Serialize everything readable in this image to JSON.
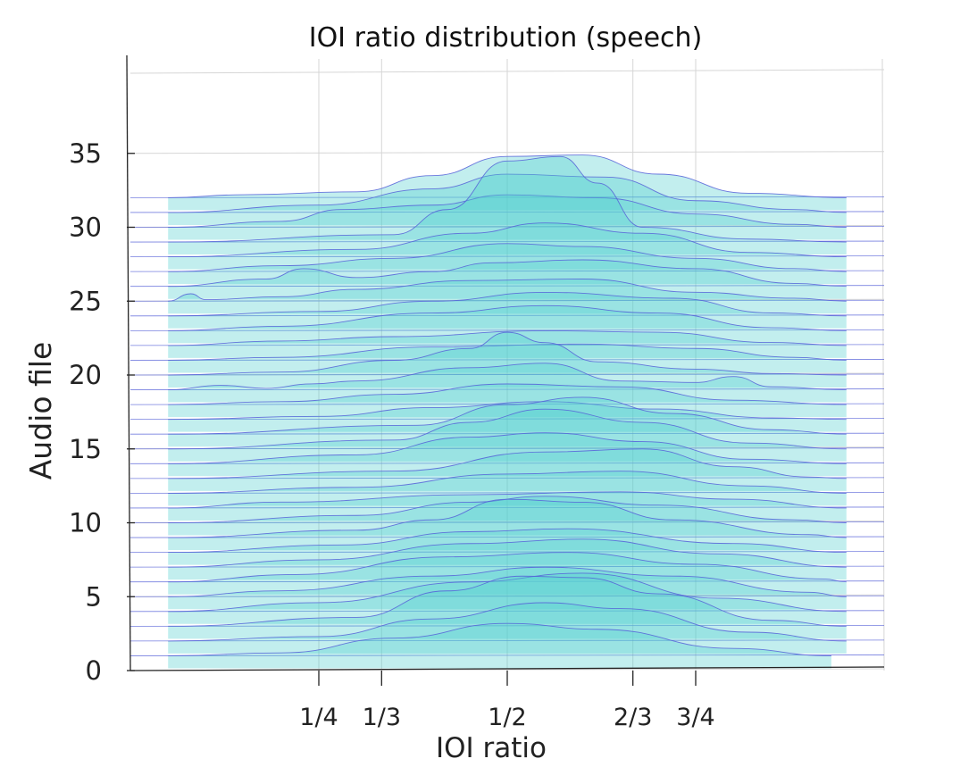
{
  "chart_data": {
    "type": "area",
    "title": "IOI ratio distribution (speech)",
    "xlabel": "IOI ratio",
    "ylabel": "Audio file",
    "x_ticks": [
      {
        "value": 0.25,
        "label": "1/4"
      },
      {
        "value": 0.3333,
        "label": "1/3"
      },
      {
        "value": 0.5,
        "label": "1/2"
      },
      {
        "value": 0.6667,
        "label": "2/3"
      },
      {
        "value": 0.75,
        "label": "3/4"
      }
    ],
    "y_ticks": [
      0,
      5,
      10,
      15,
      20,
      25,
      30,
      35
    ],
    "xlim": [
      0,
      1
    ],
    "ylim": [
      0,
      35
    ],
    "grid": true,
    "fill_color": "#4fcfcf",
    "line_color": "#5560d8",
    "series": [
      {
        "file": 1,
        "values": [
          {
            "x": 0.05,
            "y": 0
          },
          {
            "x": 0.2,
            "y": 0.2
          },
          {
            "x": 0.35,
            "y": 1.2
          },
          {
            "x": 0.5,
            "y": 2.2
          },
          {
            "x": 0.62,
            "y": 1.8
          },
          {
            "x": 0.8,
            "y": 0.5
          },
          {
            "x": 0.93,
            "y": 0
          }
        ]
      },
      {
        "file": 2,
        "values": [
          {
            "x": 0.05,
            "y": 0
          },
          {
            "x": 0.25,
            "y": 0.3
          },
          {
            "x": 0.4,
            "y": 1.5
          },
          {
            "x": 0.55,
            "y": 2.6
          },
          {
            "x": 0.65,
            "y": 2.2
          },
          {
            "x": 0.82,
            "y": 0.6
          },
          {
            "x": 0.95,
            "y": 0
          }
        ]
      },
      {
        "file": 3,
        "values": [
          {
            "x": 0.05,
            "y": 0
          },
          {
            "x": 0.3,
            "y": 0.6
          },
          {
            "x": 0.42,
            "y": 2.4
          },
          {
            "x": 0.52,
            "y": 3.4
          },
          {
            "x": 0.6,
            "y": 3.3
          },
          {
            "x": 0.7,
            "y": 2.2
          },
          {
            "x": 0.85,
            "y": 0.4
          },
          {
            "x": 0.95,
            "y": 0
          }
        ]
      },
      {
        "file": 4,
        "values": [
          {
            "x": 0.05,
            "y": 0
          },
          {
            "x": 0.25,
            "y": 0.6
          },
          {
            "x": 0.45,
            "y": 2.0
          },
          {
            "x": 0.6,
            "y": 2.6
          },
          {
            "x": 0.78,
            "y": 0.9
          },
          {
            "x": 0.95,
            "y": 0
          }
        ]
      },
      {
        "file": 5,
        "values": [
          {
            "x": 0.05,
            "y": 0
          },
          {
            "x": 0.2,
            "y": 0.4
          },
          {
            "x": 0.4,
            "y": 1.4
          },
          {
            "x": 0.55,
            "y": 2.0
          },
          {
            "x": 0.72,
            "y": 1.4
          },
          {
            "x": 0.9,
            "y": 0.3
          },
          {
            "x": 0.95,
            "y": 0
          }
        ]
      },
      {
        "file": 6,
        "values": [
          {
            "x": 0.05,
            "y": 0
          },
          {
            "x": 0.22,
            "y": 0.5
          },
          {
            "x": 0.42,
            "y": 1.7
          },
          {
            "x": 0.58,
            "y": 2.0
          },
          {
            "x": 0.75,
            "y": 1.2
          },
          {
            "x": 0.92,
            "y": 0.2
          },
          {
            "x": 0.95,
            "y": 0
          }
        ]
      },
      {
        "file": 7,
        "values": [
          {
            "x": 0.05,
            "y": 0
          },
          {
            "x": 0.25,
            "y": 0.5
          },
          {
            "x": 0.45,
            "y": 1.6
          },
          {
            "x": 0.6,
            "y": 1.9
          },
          {
            "x": 0.78,
            "y": 0.9
          },
          {
            "x": 0.95,
            "y": 0
          }
        ]
      },
      {
        "file": 8,
        "values": [
          {
            "x": 0.05,
            "y": 0
          },
          {
            "x": 0.28,
            "y": 0.5
          },
          {
            "x": 0.45,
            "y": 1.4
          },
          {
            "x": 0.58,
            "y": 1.6
          },
          {
            "x": 0.8,
            "y": 0.6
          },
          {
            "x": 0.95,
            "y": 0
          }
        ]
      },
      {
        "file": 9,
        "values": [
          {
            "x": 0.05,
            "y": 0
          },
          {
            "x": 0.3,
            "y": 0.5
          },
          {
            "x": 0.4,
            "y": 1.2
          },
          {
            "x": 0.5,
            "y": 2.6
          },
          {
            "x": 0.6,
            "y": 2.4
          },
          {
            "x": 0.72,
            "y": 1.2
          },
          {
            "x": 0.9,
            "y": 0.2
          },
          {
            "x": 0.95,
            "y": 0
          }
        ]
      },
      {
        "file": 10,
        "values": [
          {
            "x": 0.05,
            "y": 0
          },
          {
            "x": 0.3,
            "y": 0.5
          },
          {
            "x": 0.45,
            "y": 1.4
          },
          {
            "x": 0.55,
            "y": 1.8
          },
          {
            "x": 0.7,
            "y": 1.2
          },
          {
            "x": 0.88,
            "y": 0.2
          },
          {
            "x": 0.95,
            "y": 0
          }
        ]
      },
      {
        "file": 11,
        "values": [
          {
            "x": 0.05,
            "y": 0
          },
          {
            "x": 0.2,
            "y": 0.4
          },
          {
            "x": 0.45,
            "y": 0.9
          },
          {
            "x": 0.65,
            "y": 1.1
          },
          {
            "x": 0.8,
            "y": 0.6
          },
          {
            "x": 0.95,
            "y": 0
          }
        ]
      },
      {
        "file": 12,
        "values": [
          {
            "x": 0.05,
            "y": 0
          },
          {
            "x": 0.3,
            "y": 0.4
          },
          {
            "x": 0.5,
            "y": 1.3
          },
          {
            "x": 0.65,
            "y": 1.5
          },
          {
            "x": 0.82,
            "y": 0.5
          },
          {
            "x": 0.95,
            "y": 0
          }
        ]
      },
      {
        "file": 13,
        "values": [
          {
            "x": 0.05,
            "y": 0
          },
          {
            "x": 0.35,
            "y": 0.5
          },
          {
            "x": 0.55,
            "y": 1.8
          },
          {
            "x": 0.68,
            "y": 2.0
          },
          {
            "x": 0.8,
            "y": 0.8
          },
          {
            "x": 0.9,
            "y": 0.1
          },
          {
            "x": 0.95,
            "y": 0
          }
        ]
      },
      {
        "file": 14,
        "values": [
          {
            "x": 0.05,
            "y": 0
          },
          {
            "x": 0.3,
            "y": 0.6
          },
          {
            "x": 0.45,
            "y": 1.8
          },
          {
            "x": 0.55,
            "y": 2.1
          },
          {
            "x": 0.68,
            "y": 1.5
          },
          {
            "x": 0.82,
            "y": 0.3
          },
          {
            "x": 0.95,
            "y": 0
          }
        ]
      },
      {
        "file": 15,
        "values": [
          {
            "x": 0.05,
            "y": 0
          },
          {
            "x": 0.35,
            "y": 0.6
          },
          {
            "x": 0.45,
            "y": 1.8
          },
          {
            "x": 0.55,
            "y": 2.7
          },
          {
            "x": 0.68,
            "y": 1.8
          },
          {
            "x": 0.82,
            "y": 0.4
          },
          {
            "x": 0.95,
            "y": 0
          }
        ]
      },
      {
        "file": 16,
        "values": [
          {
            "x": 0.05,
            "y": 0
          },
          {
            "x": 0.38,
            "y": 0.6
          },
          {
            "x": 0.5,
            "y": 2.0
          },
          {
            "x": 0.6,
            "y": 2.5
          },
          {
            "x": 0.72,
            "y": 1.4
          },
          {
            "x": 0.85,
            "y": 0.3
          },
          {
            "x": 0.95,
            "y": 0
          }
        ]
      },
      {
        "file": 17,
        "values": [
          {
            "x": 0.05,
            "y": 0
          },
          {
            "x": 0.25,
            "y": 0.2
          },
          {
            "x": 0.4,
            "y": 0.8
          },
          {
            "x": 0.55,
            "y": 1.2
          },
          {
            "x": 0.7,
            "y": 0.7
          },
          {
            "x": 0.85,
            "y": 0.1
          },
          {
            "x": 0.95,
            "y": 0
          }
        ]
      },
      {
        "file": 18,
        "values": [
          {
            "x": 0.05,
            "y": 0
          },
          {
            "x": 0.2,
            "y": 0.2
          },
          {
            "x": 0.35,
            "y": 0.7
          },
          {
            "x": 0.5,
            "y": 1.4
          },
          {
            "x": 0.65,
            "y": 1.2
          },
          {
            "x": 0.8,
            "y": 0.3
          },
          {
            "x": 0.95,
            "y": 0
          }
        ]
      },
      {
        "file": 19,
        "values": [
          {
            "x": 0.05,
            "y": 0
          },
          {
            "x": 0.12,
            "y": 0.3
          },
          {
            "x": 0.18,
            "y": 0.1
          },
          {
            "x": 0.24,
            "y": 0.4
          },
          {
            "x": 0.3,
            "y": 0.6
          },
          {
            "x": 0.45,
            "y": 1.5
          },
          {
            "x": 0.55,
            "y": 1.8
          },
          {
            "x": 0.65,
            "y": 0.6
          },
          {
            "x": 0.75,
            "y": 0.5
          },
          {
            "x": 0.8,
            "y": 0.9
          },
          {
            "x": 0.85,
            "y": 0.2
          },
          {
            "x": 0.95,
            "y": 0
          }
        ]
      },
      {
        "file": 20,
        "values": [
          {
            "x": 0.05,
            "y": 0
          },
          {
            "x": 0.2,
            "y": 0.2
          },
          {
            "x": 0.35,
            "y": 1.0
          },
          {
            "x": 0.45,
            "y": 1.8
          },
          {
            "x": 0.5,
            "y": 2.9
          },
          {
            "x": 0.55,
            "y": 2.2
          },
          {
            "x": 0.62,
            "y": 0.9
          },
          {
            "x": 0.75,
            "y": 0.4
          },
          {
            "x": 0.85,
            "y": 0.1
          },
          {
            "x": 0.95,
            "y": 0
          }
        ]
      },
      {
        "file": 21,
        "values": [
          {
            "x": 0.05,
            "y": 0
          },
          {
            "x": 0.2,
            "y": 0.2
          },
          {
            "x": 0.4,
            "y": 0.9
          },
          {
            "x": 0.6,
            "y": 1.1
          },
          {
            "x": 0.75,
            "y": 0.8
          },
          {
            "x": 0.88,
            "y": 0.2
          },
          {
            "x": 0.95,
            "y": 0
          }
        ]
      },
      {
        "file": 22,
        "values": [
          {
            "x": 0.05,
            "y": 0
          },
          {
            "x": 0.2,
            "y": 0.3
          },
          {
            "x": 0.35,
            "y": 0.6
          },
          {
            "x": 0.55,
            "y": 1.0
          },
          {
            "x": 0.7,
            "y": 0.9
          },
          {
            "x": 0.85,
            "y": 0.2
          },
          {
            "x": 0.95,
            "y": 0
          }
        ]
      },
      {
        "file": 23,
        "values": [
          {
            "x": 0.05,
            "y": 0
          },
          {
            "x": 0.2,
            "y": 0.3
          },
          {
            "x": 0.4,
            "y": 1.2
          },
          {
            "x": 0.55,
            "y": 1.7
          },
          {
            "x": 0.7,
            "y": 1.2
          },
          {
            "x": 0.85,
            "y": 0.2
          },
          {
            "x": 0.95,
            "y": 0
          }
        ]
      },
      {
        "file": 24,
        "values": [
          {
            "x": 0.05,
            "y": 0
          },
          {
            "x": 0.25,
            "y": 0.3
          },
          {
            "x": 0.4,
            "y": 1.0
          },
          {
            "x": 0.55,
            "y": 1.6
          },
          {
            "x": 0.72,
            "y": 1.2
          },
          {
            "x": 0.85,
            "y": 0.2
          },
          {
            "x": 0.95,
            "y": 0
          }
        ]
      },
      {
        "file": 25,
        "values": [
          {
            "x": 0.05,
            "y": 0
          },
          {
            "x": 0.08,
            "y": 0.5
          },
          {
            "x": 0.1,
            "y": 0.1
          },
          {
            "x": 0.2,
            "y": 0.3
          },
          {
            "x": 0.3,
            "y": 0.8
          },
          {
            "x": 0.45,
            "y": 1.4
          },
          {
            "x": 0.6,
            "y": 1.5
          },
          {
            "x": 0.75,
            "y": 0.6
          },
          {
            "x": 0.88,
            "y": 0.2
          },
          {
            "x": 0.95,
            "y": 0
          }
        ]
      },
      {
        "file": 26,
        "values": [
          {
            "x": 0.05,
            "y": 0
          },
          {
            "x": 0.18,
            "y": 0.5
          },
          {
            "x": 0.23,
            "y": 1.2
          },
          {
            "x": 0.3,
            "y": 0.6
          },
          {
            "x": 0.4,
            "y": 1.0
          },
          {
            "x": 0.48,
            "y": 1.6
          },
          {
            "x": 0.6,
            "y": 1.8
          },
          {
            "x": 0.75,
            "y": 1.2
          },
          {
            "x": 0.88,
            "y": 0.2
          },
          {
            "x": 0.95,
            "y": 0
          }
        ]
      },
      {
        "file": 27,
        "values": [
          {
            "x": 0.05,
            "y": 0
          },
          {
            "x": 0.2,
            "y": 0.4
          },
          {
            "x": 0.35,
            "y": 0.9
          },
          {
            "x": 0.5,
            "y": 1.9
          },
          {
            "x": 0.6,
            "y": 1.7
          },
          {
            "x": 0.75,
            "y": 0.9
          },
          {
            "x": 0.88,
            "y": 0.2
          },
          {
            "x": 0.95,
            "y": 0
          }
        ]
      },
      {
        "file": 28,
        "values": [
          {
            "x": 0.05,
            "y": 0
          },
          {
            "x": 0.3,
            "y": 0.5
          },
          {
            "x": 0.45,
            "y": 1.6
          },
          {
            "x": 0.55,
            "y": 2.3
          },
          {
            "x": 0.68,
            "y": 1.6
          },
          {
            "x": 0.82,
            "y": 0.3
          },
          {
            "x": 0.95,
            "y": 0
          }
        ]
      },
      {
        "file": 29,
        "values": [
          {
            "x": 0.05,
            "y": 0
          },
          {
            "x": 0.35,
            "y": 0.5
          },
          {
            "x": 0.42,
            "y": 2.2
          },
          {
            "x": 0.5,
            "y": 5.5
          },
          {
            "x": 0.57,
            "y": 5.8
          },
          {
            "x": 0.62,
            "y": 4.0
          },
          {
            "x": 0.68,
            "y": 1.0
          },
          {
            "x": 0.82,
            "y": 0.2
          },
          {
            "x": 0.95,
            "y": 0
          }
        ]
      },
      {
        "file": 30,
        "values": [
          {
            "x": 0.05,
            "y": 0
          },
          {
            "x": 0.2,
            "y": 0.4
          },
          {
            "x": 0.28,
            "y": 1.2
          },
          {
            "x": 0.4,
            "y": 1.5
          },
          {
            "x": 0.5,
            "y": 2.2
          },
          {
            "x": 0.62,
            "y": 2.0
          },
          {
            "x": 0.75,
            "y": 0.9
          },
          {
            "x": 0.88,
            "y": 0.2
          },
          {
            "x": 0.95,
            "y": 0
          }
        ]
      },
      {
        "file": 31,
        "values": [
          {
            "x": 0.05,
            "y": 0
          },
          {
            "x": 0.25,
            "y": 0.5
          },
          {
            "x": 0.4,
            "y": 1.6
          },
          {
            "x": 0.5,
            "y": 2.6
          },
          {
            "x": 0.63,
            "y": 2.4
          },
          {
            "x": 0.75,
            "y": 0.8
          },
          {
            "x": 0.88,
            "y": 0.2
          },
          {
            "x": 0.95,
            "y": 0
          }
        ]
      },
      {
        "file": 32,
        "values": [
          {
            "x": 0.05,
            "y": 0
          },
          {
            "x": 0.15,
            "y": 0.2
          },
          {
            "x": 0.3,
            "y": 0.4
          },
          {
            "x": 0.4,
            "y": 1.5
          },
          {
            "x": 0.5,
            "y": 2.8
          },
          {
            "x": 0.6,
            "y": 2.9
          },
          {
            "x": 0.7,
            "y": 1.6
          },
          {
            "x": 0.82,
            "y": 0.3
          },
          {
            "x": 0.95,
            "y": 0
          }
        ]
      }
    ]
  }
}
